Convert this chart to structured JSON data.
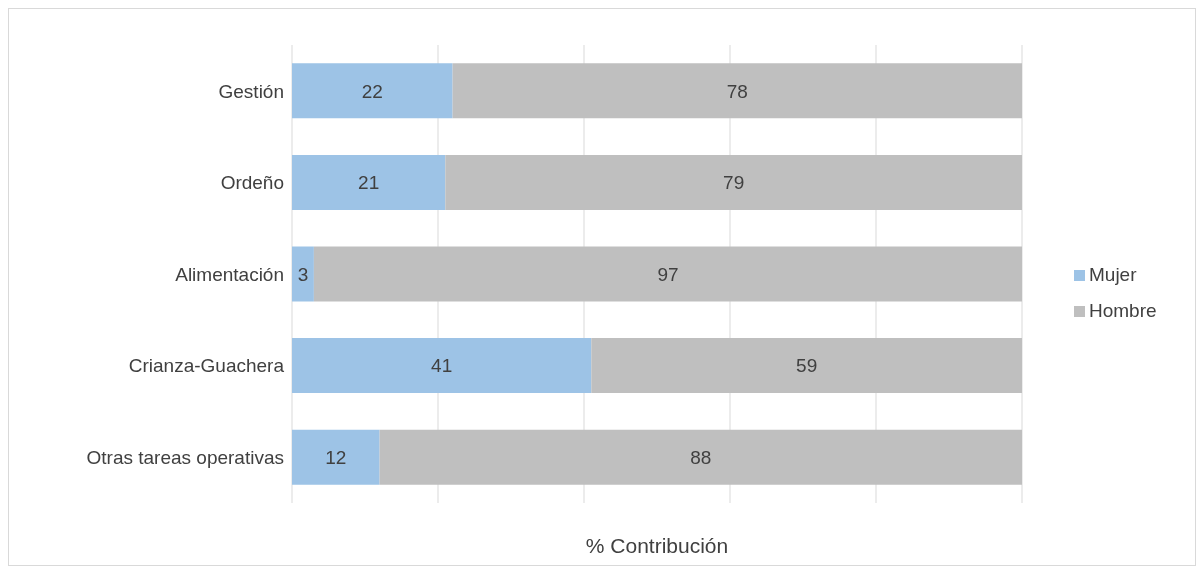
{
  "chart_data": {
    "type": "bar",
    "orientation": "horizontal",
    "stacked": true,
    "xlabel": "% Contribución",
    "categories": [
      "Gestión",
      "Ordeño",
      "Alimentación",
      "Crianza-Guachera",
      "Otras tareas operativas"
    ],
    "series": [
      {
        "name": "Mujer",
        "color": "#9dc3e6",
        "values": [
          22,
          21,
          3,
          41,
          12
        ]
      },
      {
        "name": "Hombre",
        "color": "#bfbfbf",
        "values": [
          78,
          79,
          97,
          59,
          88
        ]
      }
    ],
    "xlim": [
      0,
      100
    ],
    "xticks": [
      {
        "value": 0,
        "label": null
      },
      {
        "value": 20,
        "label": null
      },
      {
        "value": 40,
        "label": null
      },
      {
        "value": 60,
        "label": null
      },
      {
        "value": 80,
        "label": null
      },
      {
        "value": 100,
        "label": null
      }
    ],
    "tick_labels": "y",
    "grid": "x",
    "legend": "right",
    "data_labels": true
  }
}
